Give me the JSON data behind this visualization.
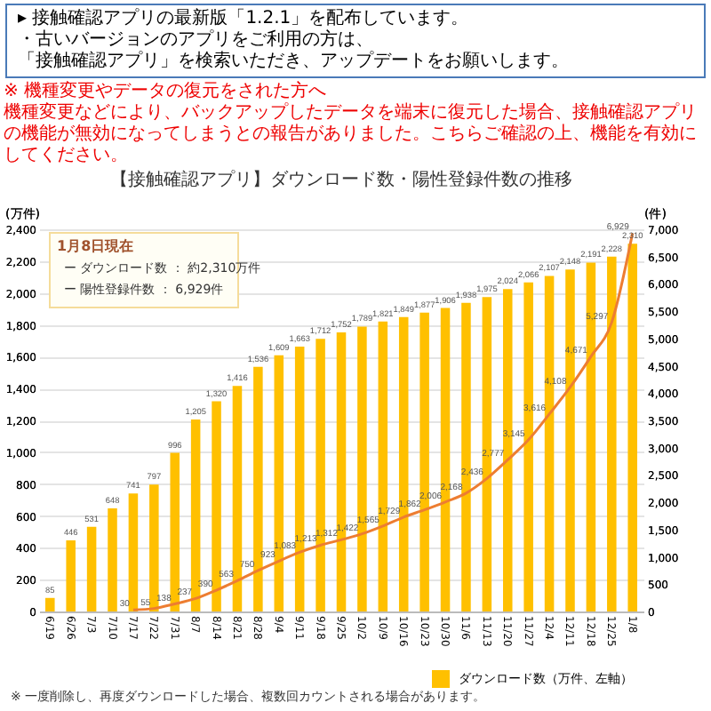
{
  "chart_data": {
    "type": "bar",
    "title": "【接触確認アプリ】ダウンロード数・陽性登録件数の推移",
    "annotations": [
      "▸ 接触確認アプリの最新版「1.2.1」を配布しています。",
      "・古いバージョンのアプリをご利用の方は、",
      "「接触確認アプリ」を検索いただき、アップデートをお願いします。",
      "※ 機種変更やデータの復元をされた方へ",
      "機種変更などにより、バックアップしたデータを端末に復元した場合、接触確認アプリの機能が無効になってしまうとの報告がありました。こちらご確認の上、機能を有効にしてください。",
      "1月8日現在",
      "ー ダウンロード数 ： 約2,310万件",
      "ー 陽性登録件数 ： 6,929件",
      "※ 一度削除し、再度ダウンロードした場合、複数回カウントされる場合があります。"
    ],
    "ylabel": "(万件)",
    "y2label": "(件)",
    "categories": [
      "6/19",
      "6/26",
      "7/3",
      "7/10",
      "7/17",
      "7/22",
      "7/31",
      "8/7",
      "8/14",
      "8/21",
      "8/28",
      "9/4",
      "9/11",
      "9/18",
      "9/25",
      "10/2",
      "10/9",
      "10/16",
      "10/23",
      "10/30",
      "11/6",
      "11/13",
      "11/20",
      "11/27",
      "12/4",
      "12/11",
      "12/18",
      "12/25",
      "1/8"
    ],
    "series": [
      {
        "name": "ダウンロード数（万件、左軸）",
        "color": "#ffc000",
        "values": [
          85,
          446,
          531,
          648,
          741,
          797,
          996,
          1205,
          1320,
          1416,
          1536,
          1609,
          1663,
          1712,
          1752,
          1789,
          1821,
          1849,
          1877,
          1906,
          1938,
          1975,
          2024,
          2066,
          2107,
          2148,
          2191,
          2228,
          2310
        ],
        "value_labels": [
          "85",
          "446",
          "531",
          "648",
          "741",
          "797",
          "996",
          "1,205",
          "1,320",
          "1,416",
          "1,536",
          "1,609",
          "1,663",
          "1,712",
          "1,752",
          "1,789",
          "1,821",
          "1,849",
          "1,877",
          "1,906",
          "1,938",
          "1,975",
          "2,024",
          "2,066",
          "2,107",
          "2,148",
          "2,191",
          "2,228",
          "2,310"
        ]
      },
      {
        "type": "line",
        "axis": "y2",
        "color": "#ed7d31",
        "values": [
          null,
          null,
          null,
          null,
          30,
          55,
          138,
          237,
          390,
          563,
          750,
          923,
          1083,
          1213,
          1312,
          1422,
          1565,
          1729,
          1862,
          2006,
          2168,
          2436,
          2777,
          3145,
          3616,
          4108,
          4671,
          5297,
          6929
        ],
        "value_labels": [
          null,
          null,
          null,
          null,
          "30",
          "55",
          "138",
          "237",
          "390",
          "563",
          "750",
          "923",
          "1,083",
          "1,213",
          "1,312",
          "1,422",
          "1,565",
          "1,729",
          "1,862",
          "2,006",
          "2,168",
          "2,436",
          "2,777",
          "3,145",
          "3,616",
          "4,108",
          "4,671",
          "5,297",
          "6,929"
        ]
      }
    ],
    "ylim": [
      0,
      2400
    ],
    "yticks": [
      0,
      200,
      400,
      600,
      800,
      {
        "value": 1000,
        "label": "1,000"
      },
      {
        "value": 1200,
        "label": "1,200"
      },
      {
        "value": 1400,
        "label": "1,400"
      },
      {
        "value": 1600,
        "label": "1,600"
      },
      {
        "value": 1800,
        "label": "1,800"
      },
      {
        "value": 2000,
        "label": "2,000"
      },
      {
        "value": 2200,
        "label": "2,200"
      },
      {
        "value": 2400,
        "label": "2,400"
      }
    ],
    "y2lim": [
      0,
      7000
    ],
    "y2ticks": [
      0,
      500,
      {
        "value": 1000,
        "label": "1,000"
      },
      {
        "value": 1500,
        "label": "1,500"
      },
      {
        "value": 2000,
        "label": "2,000"
      },
      {
        "value": 2500,
        "label": "2,500"
      },
      {
        "value": 3000,
        "label": "3,000"
      },
      {
        "value": 3500,
        "label": "3,500"
      },
      {
        "value": 4000,
        "label": "4,000"
      },
      {
        "value": 4500,
        "label": "4,500"
      },
      {
        "value": 5000,
        "label": "5,000"
      },
      {
        "value": 5500,
        "label": "5,500"
      },
      {
        "value": 6000,
        "label": "6,000"
      },
      {
        "value": 6500,
        "label": "6,500"
      },
      {
        "value": 7000,
        "label": "7,000"
      }
    ],
    "grid": "y",
    "legend": "bottom right"
  }
}
